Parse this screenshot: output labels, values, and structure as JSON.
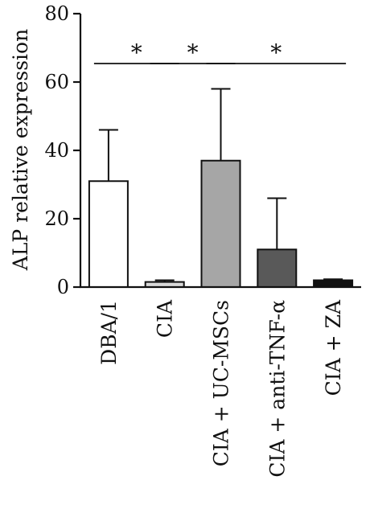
{
  "chart_data": {
    "type": "bar",
    "title": "",
    "xlabel": "",
    "ylabel": "ALP relative expression",
    "ylim": [
      0,
      80
    ],
    "yticks": [
      0,
      20,
      40,
      60,
      80
    ],
    "yticks_text": [
      "0",
      "20",
      "40",
      "60",
      "80"
    ],
    "categories": [
      "DBA/1",
      "CIA",
      "CIA + UC-MSCs",
      "CIA + anti-TNF-α",
      "CIA + ZA"
    ],
    "values": [
      31,
      1.5,
      37,
      11,
      2
    ],
    "error_upper": [
      46,
      2,
      58,
      26,
      2.3
    ],
    "colors": [
      "#ffffff",
      "#d9d9d9",
      "#a6a6a6",
      "#595959",
      "#111111"
    ],
    "significance": [
      {
        "from": 0,
        "to": 1,
        "label": "*"
      },
      {
        "from": 1,
        "to": 2,
        "label": "*"
      },
      {
        "from": 2,
        "to": 4,
        "label": "*"
      }
    ],
    "grid": false,
    "legend": "none"
  }
}
